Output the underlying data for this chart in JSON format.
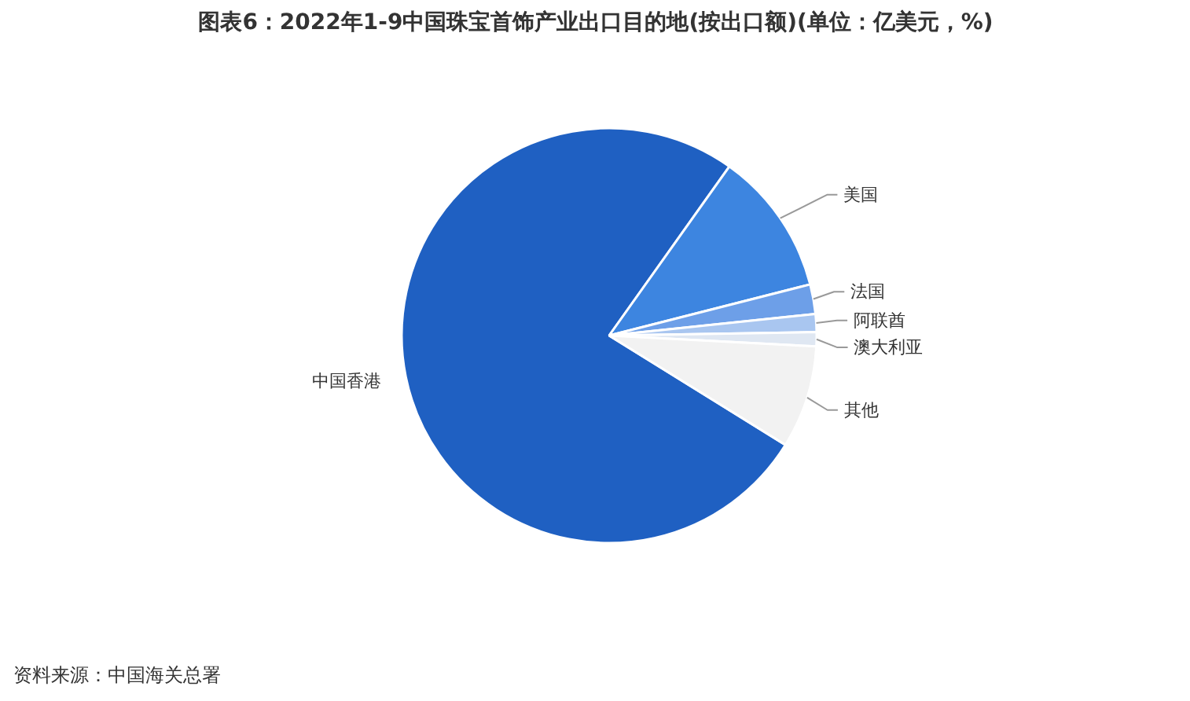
{
  "chart_data": {
    "type": "pie",
    "title": "图表6：2022年1-9中国珠宝首饰产业出口目的地(按出口额)(单位：亿美元，%)",
    "categories": [
      "中国香港",
      "美国",
      "法国",
      "阿联酋",
      "澳大利亚",
      "其他"
    ],
    "values": [
      76.0,
      11.2,
      2.3,
      1.4,
      1.1,
      8.0
    ],
    "colors": [
      "#1f60c2",
      "#3d85e0",
      "#6d9fe8",
      "#a9c6f0",
      "#dfe7f2",
      "#f2f2f2"
    ],
    "annotations": [
      "资料来源：中国海关总署"
    ]
  }
}
